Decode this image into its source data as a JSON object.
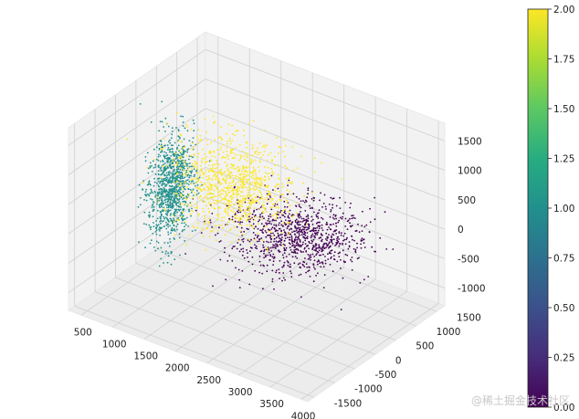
{
  "chart_data": {
    "type": "scatter",
    "projection": "3d",
    "x_ticks": [
      "500",
      "1000",
      "1500",
      "2000",
      "2500",
      "3000",
      "3500",
      "4000"
    ],
    "y_ticks": [
      "-1500",
      "-1000",
      "-500",
      "0",
      "500",
      "1000",
      "1500"
    ],
    "z_ticks": [
      "-1000",
      "-500",
      "0",
      "500",
      "1000",
      "1500"
    ],
    "xlim": [
      300,
      4100
    ],
    "ylim": [
      -1650,
      1700
    ],
    "zlim": [
      -1300,
      1800
    ],
    "grid": true,
    "series": [
      {
        "label_value": 0,
        "color": "#440154",
        "x_center": 2850,
        "y_center": 0,
        "z_center": 200,
        "x_spread": 450,
        "y_spread": 450,
        "z_spread": 180,
        "approx_points": 3000
      },
      {
        "label_value": 1,
        "color": "#21918c",
        "x_center": 600,
        "y_center": 400,
        "z_center": -100,
        "x_spread": 80,
        "y_spread": 250,
        "z_spread": 450,
        "approx_points": 3000
      },
      {
        "label_value": 2,
        "color": "#fde725",
        "x_center": 1700,
        "y_center": 200,
        "z_center": 500,
        "x_spread": 400,
        "y_spread": 350,
        "z_spread": 350,
        "approx_points": 3000
      }
    ],
    "colorbar": {
      "range": [
        0.0,
        2.0
      ],
      "ticks": [
        "0.00",
        "0.25",
        "0.50",
        "0.75",
        "1.00",
        "1.25",
        "1.50",
        "1.75",
        "2.00"
      ],
      "colormap": "viridis"
    },
    "watermark": "@稀土掘金技术社区"
  }
}
